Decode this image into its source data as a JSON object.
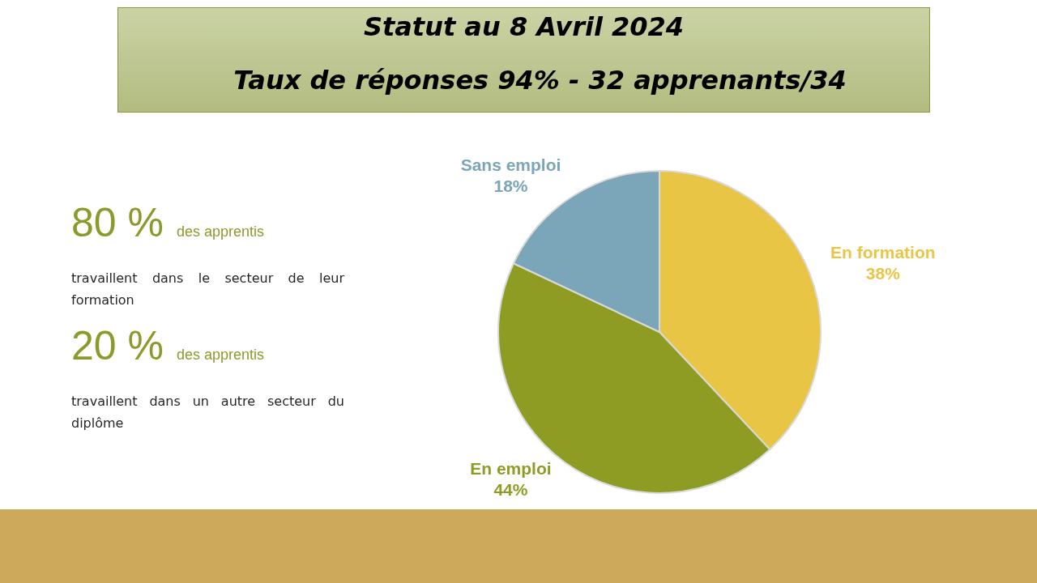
{
  "chart_data": {
    "type": "pie",
    "title": "Statut au 8 Avril 2024",
    "subtitle": "Taux de réponses 94% - 32 apprenants/34",
    "categories": [
      "En formation",
      "En emploi",
      "Sans emploi"
    ],
    "values": [
      38,
      44,
      18
    ],
    "colors": [
      "#e9c546",
      "#8f9c23",
      "#7ba5b8"
    ],
    "value_labels": [
      "38%",
      "44%",
      "18%"
    ],
    "annotations": [
      "80 %",
      "des apprentis",
      "travaillent dans le secteur de leur formation",
      "20 %",
      "des apprentis",
      "travaillent dans un autre secteur du diplôme"
    ]
  }
}
